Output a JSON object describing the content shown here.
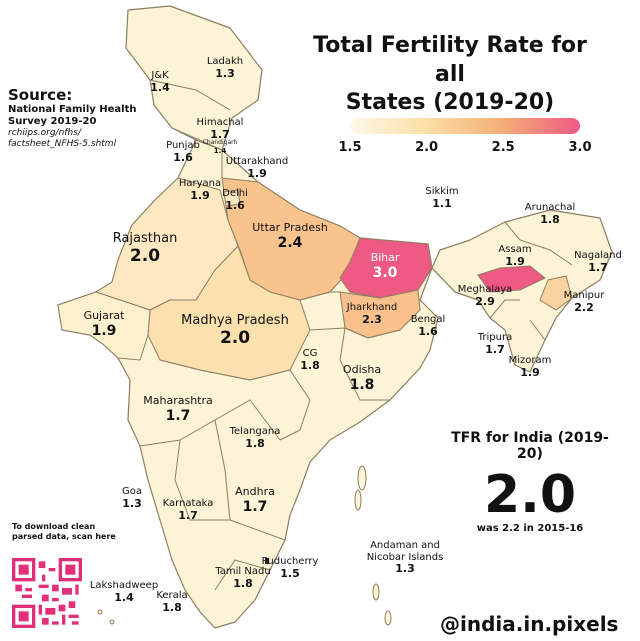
{
  "title_line1": "Total Fertility Rate for all",
  "title_line2": "States (2019-20)",
  "legend": {
    "ticks": [
      "1.5",
      "2.0",
      "2.5",
      "3.0"
    ],
    "min": 1.5,
    "max": 3.0
  },
  "source": {
    "heading": "Source:",
    "line1": "National Family Health",
    "line2": "Survey 2019-20",
    "url1": "rchiips.org/nfhs/",
    "url2": "factsheet_NFHS-5.shtml"
  },
  "states": [
    {
      "name": "Ladakh",
      "tfr": "1.3"
    },
    {
      "name": "J&K",
      "tfr": "1.4"
    },
    {
      "name": "Himachal",
      "tfr": "1.7"
    },
    {
      "name": "Punjab",
      "tfr": "1.6"
    },
    {
      "name": "Chandigarh",
      "tfr": "1.4"
    },
    {
      "name": "Uttarakhand",
      "tfr": "1.9"
    },
    {
      "name": "Haryana",
      "tfr": "1.9"
    },
    {
      "name": "Delhi",
      "tfr": "1.6"
    },
    {
      "name": "Rajasthan",
      "tfr": "2.0"
    },
    {
      "name": "Uttar Pradesh",
      "tfr": "2.4"
    },
    {
      "name": "Bihar",
      "tfr": "3.0"
    },
    {
      "name": "Sikkim",
      "tfr": "1.1"
    },
    {
      "name": "Arunachal",
      "tfr": "1.8"
    },
    {
      "name": "Assam",
      "tfr": "1.9"
    },
    {
      "name": "Nagaland",
      "tfr": "1.7"
    },
    {
      "name": "Meghalaya",
      "tfr": "2.9"
    },
    {
      "name": "Manipur",
      "tfr": "2.2"
    },
    {
      "name": "Tripura",
      "tfr": "1.7"
    },
    {
      "name": "Mizoram",
      "tfr": "1.9"
    },
    {
      "name": "Gujarat",
      "tfr": "1.9"
    },
    {
      "name": "Madhya Pradesh",
      "tfr": "2.0"
    },
    {
      "name": "Jharkhand",
      "tfr": "2.3"
    },
    {
      "name": "Bengal",
      "tfr": "1.6"
    },
    {
      "name": "CG",
      "tfr": "1.8"
    },
    {
      "name": "Odisha",
      "tfr": "1.8"
    },
    {
      "name": "Maharashtra",
      "tfr": "1.7"
    },
    {
      "name": "Telangana",
      "tfr": "1.8"
    },
    {
      "name": "Goa",
      "tfr": "1.3"
    },
    {
      "name": "Karnataka",
      "tfr": "1.7"
    },
    {
      "name": "Andhra",
      "tfr": "1.7"
    },
    {
      "name": "Puducherry",
      "tfr": "1.5"
    },
    {
      "name": "Tamil Nadu",
      "tfr": "1.8"
    },
    {
      "name": "Kerala",
      "tfr": "1.8"
    },
    {
      "name": "Lakshadweep",
      "tfr": "1.4"
    },
    {
      "name": "Andaman and",
      "name2": "Nicobar Islands",
      "tfr": "1.3"
    }
  ],
  "india": {
    "heading": "TFR for India (2019-20)",
    "value": "2.0",
    "previous": "was 2.2 in 2015-16"
  },
  "download": {
    "line1": "To download clean",
    "line2": "parsed data, scan here"
  },
  "handle": "@india.in.pixels",
  "colors": {
    "low": "#fdf8e8",
    "mid": "#fbdfa6",
    "high": "#f4ad77",
    "peak": "#ef5a84"
  }
}
